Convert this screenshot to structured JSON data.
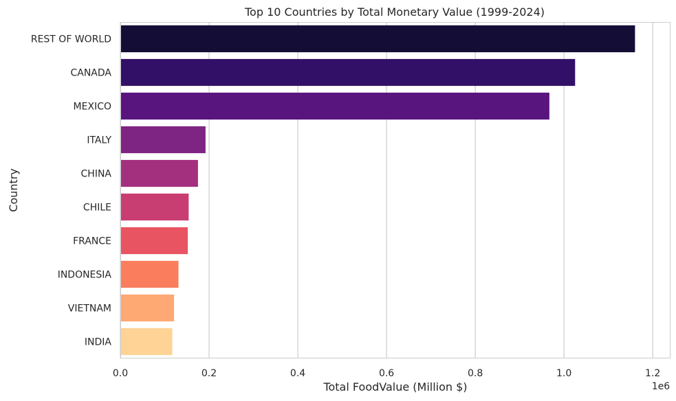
{
  "chart_data": {
    "type": "bar",
    "orientation": "horizontal",
    "title": "Top 10 Countries by Total Monetary Value (1999-2024)",
    "xlabel": "Total FoodValue (Million $)",
    "ylabel": "Country",
    "x_offset_label": "1e6",
    "xlim": [
      0,
      1240000
    ],
    "xticks": [
      0,
      200000,
      400000,
      600000,
      800000,
      1000000,
      1200000
    ],
    "xtick_labels": [
      "0.0",
      "0.2",
      "0.4",
      "0.6",
      "0.8",
      "1.0",
      "1.2"
    ],
    "grid": "x-major",
    "categories": [
      "REST OF WORLD",
      "CANADA",
      "MEXICO",
      "ITALY",
      "CHINA",
      "CHILE",
      "FRANCE",
      "INDONESIA",
      "VIETNAM",
      "INDIA"
    ],
    "values": [
      1160000,
      1025000,
      967000,
      192000,
      175000,
      154000,
      152000,
      131000,
      121000,
      117000
    ],
    "colors": [
      "#140e36",
      "#331067",
      "#59157e",
      "#7e2482",
      "#a3307e",
      "#c83e73",
      "#e95462",
      "#fa7d5e",
      "#fea873",
      "#fed395"
    ]
  }
}
